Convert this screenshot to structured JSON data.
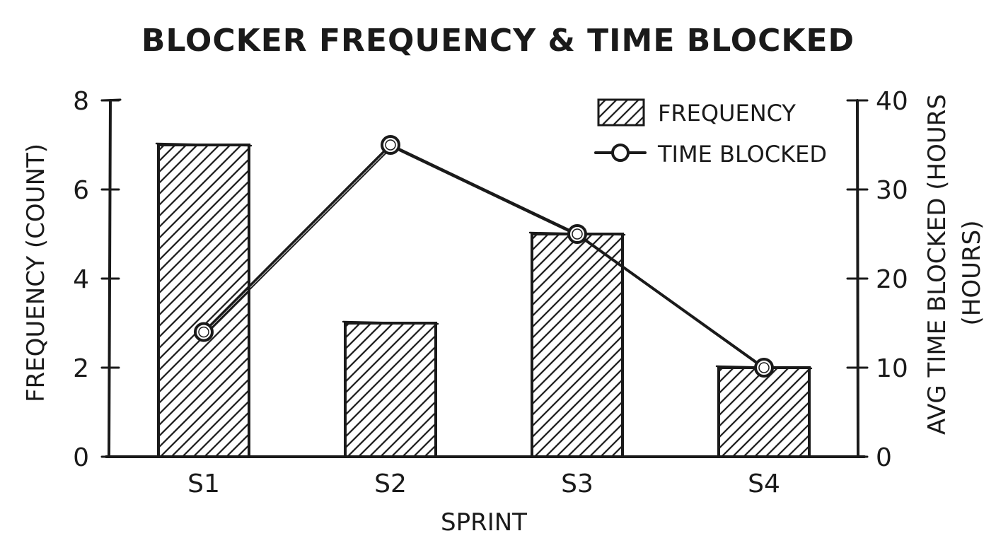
{
  "chart_data": {
    "type": "bar",
    "title": "BLOCKER FREQUENCY & TIME BLOCKED",
    "xlabel": "SPRINT",
    "ylabel": "FREQUENCY (COUNT)",
    "y2label_line1": "AVG TIME BLOCKED (HOURS",
    "y2label_line2": "(HOURS)",
    "categories": [
      "S1",
      "S2",
      "S3",
      "S4"
    ],
    "ylim": [
      0,
      8
    ],
    "y_ticks": [
      "0",
      "2",
      "4",
      "6",
      "8"
    ],
    "y2lim": [
      0,
      40
    ],
    "y2_ticks": [
      "0",
      "10",
      "20",
      "30",
      "40"
    ],
    "series": [
      {
        "name": "FREQUENCY",
        "type": "bar",
        "axis": "left",
        "values": [
          7,
          3,
          5,
          2
        ]
      },
      {
        "name": "TIME BLOCKED",
        "type": "line",
        "axis": "right",
        "values": [
          14,
          35,
          25,
          10
        ]
      }
    ],
    "legend": {
      "position": "top-right"
    },
    "grid": false,
    "style": {
      "ink": "#1a1a1a",
      "background": "#ffffff",
      "bar_fill": "diagonal-hatch"
    }
  }
}
